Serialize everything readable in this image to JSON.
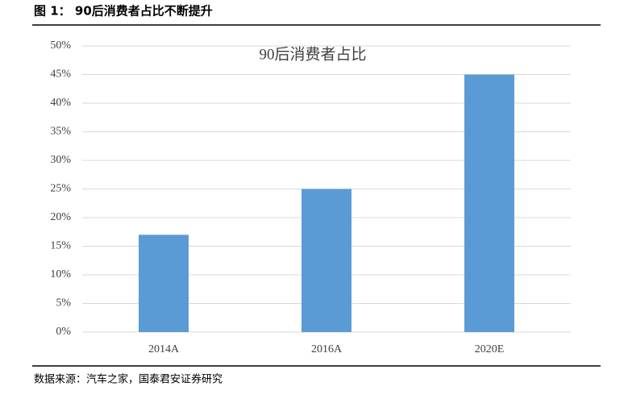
{
  "caption": "图 1： 90后消费者占比不断提升",
  "source": "数据来源：汽车之家，国泰君安证券研究",
  "chart_data": {
    "type": "bar",
    "title": "90后消费者占比",
    "categories": [
      "2014A",
      "2016A",
      "2020E"
    ],
    "values": [
      17,
      25,
      45
    ],
    "color": "#5b9bd5",
    "ylim": [
      0,
      50
    ],
    "yticks": [
      {
        "value": 0,
        "label": "0%"
      },
      {
        "value": 5,
        "label": "5%"
      },
      {
        "value": 10,
        "label": "10%"
      },
      {
        "value": 15,
        "label": "15%"
      },
      {
        "value": 20,
        "label": "20%"
      },
      {
        "value": 25,
        "label": "25%"
      },
      {
        "value": 30,
        "label": "30%"
      },
      {
        "value": 35,
        "label": "35%"
      },
      {
        "value": 40,
        "label": "40%"
      },
      {
        "value": 45,
        "label": "45%"
      },
      {
        "value": 50,
        "label": "50%"
      }
    ],
    "grid": true
  }
}
